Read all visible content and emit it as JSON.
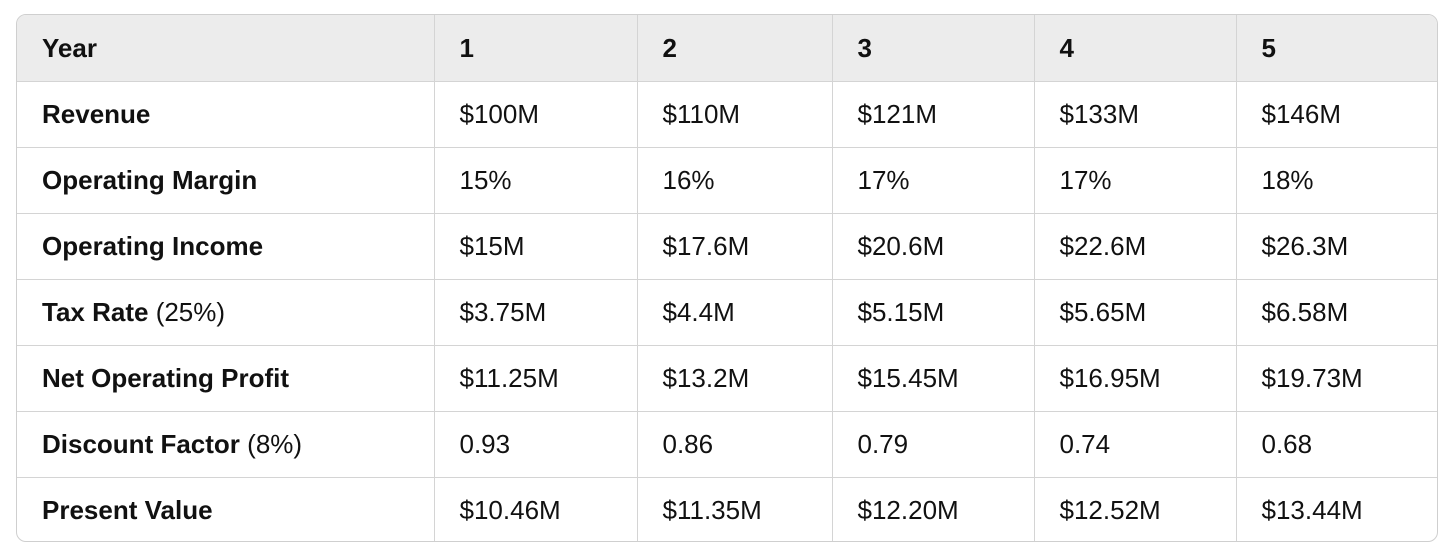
{
  "table": {
    "headers": [
      "Year",
      "1",
      "2",
      "3",
      "4",
      "5"
    ],
    "rows": [
      {
        "label": "Revenue",
        "suffix": "",
        "values": [
          "$100M",
          "$110M",
          "$121M",
          "$133M",
          "$146M"
        ]
      },
      {
        "label": "Operating Margin",
        "suffix": "",
        "values": [
          "15%",
          "16%",
          "17%",
          "17%",
          "18%"
        ]
      },
      {
        "label": "Operating Income",
        "suffix": "",
        "values": [
          "$15M",
          "$17.6M",
          "$20.6M",
          "$22.6M",
          "$26.3M"
        ]
      },
      {
        "label": "Tax Rate",
        "suffix": "(25%)",
        "values": [
          "$3.75M",
          "$4.4M",
          "$5.15M",
          "$5.65M",
          "$6.58M"
        ]
      },
      {
        "label": "Net Operating Profit",
        "suffix": "",
        "values": [
          "$11.25M",
          "$13.2M",
          "$15.45M",
          "$16.95M",
          "$19.73M"
        ]
      },
      {
        "label": "Discount Factor",
        "suffix": "(8%)",
        "values": [
          "0.93",
          "0.86",
          "0.79",
          "0.74",
          "0.68"
        ]
      },
      {
        "label": "Present Value",
        "suffix": "",
        "values": [
          "$10.46M",
          "$11.35M",
          "$12.20M",
          "$12.52M",
          "$13.44M"
        ]
      }
    ]
  }
}
